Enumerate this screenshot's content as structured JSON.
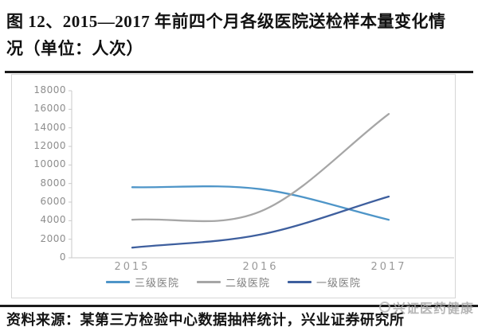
{
  "page": {
    "title_line1": "图 12、2015—2017 年前四个月各级医院送检样本量变化情",
    "title_line2": "况（单位：人次）",
    "source": "资料来源：某第三方检验中心数据抽样统计，兴业证券研究所",
    "watermark": "兴证医药健康"
  },
  "chart_data": {
    "type": "line",
    "title": "2015—2017 年前四个月各级医院送检样本量变化情况",
    "unit": "人次",
    "categories": [
      "2015",
      "2016",
      "2017"
    ],
    "series": [
      {
        "name": "三级医院",
        "color": "#4e95c8",
        "values": [
          7600,
          7400,
          4100
        ]
      },
      {
        "name": "二级医院",
        "color": "#a6a6a6",
        "values": [
          4100,
          5000,
          15500
        ]
      },
      {
        "name": "一级医院",
        "color": "#3e5f9e",
        "values": [
          1100,
          2500,
          6600
        ]
      }
    ],
    "ylim": [
      0,
      18000
    ],
    "ytick_step": 2000,
    "smooth": true,
    "grid": false,
    "legend_position": "bottom",
    "axis_color": "#c9c9c9",
    "tick_label_color": "#8d8d8d"
  }
}
